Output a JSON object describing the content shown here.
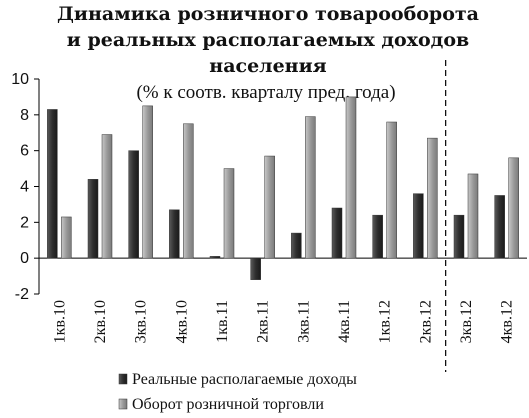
{
  "chart_data": {
    "type": "bar",
    "title_lines": [
      "Динамика розничного товарооборота",
      "и реальных располагаемых доходов",
      "населения"
    ],
    "subtitle": "(% к соотв. кварталу пред. года)",
    "categories": [
      "1кв.10",
      "2кв.10",
      "3кв.10",
      "4кв.10",
      "1кв.11",
      "2кв.11",
      "3кв.11",
      "4кв.11",
      "1кв.12",
      "2кв.12",
      "3кв.12",
      "4кв.12"
    ],
    "series": [
      {
        "name": "Реальные располагаемые доходы",
        "color": "#3a3a3a",
        "values": [
          8.3,
          4.4,
          6.0,
          2.7,
          0.1,
          -1.2,
          1.4,
          2.8,
          2.4,
          3.6,
          2.4,
          3.5
        ]
      },
      {
        "name": "Оборот розничной торговли",
        "color": "#9a9a9a",
        "values": [
          2.3,
          6.9,
          8.5,
          7.5,
          5.0,
          5.7,
          7.9,
          9.0,
          7.6,
          6.7,
          4.7,
          5.6
        ]
      }
    ],
    "y_ticks": [
      "-2",
      "0",
      "2",
      "4",
      "6",
      "8",
      "10"
    ],
    "ylim": [
      -2,
      10
    ],
    "divider_after_category": "2кв.12",
    "legend_position": "bottom",
    "grid": false
  }
}
